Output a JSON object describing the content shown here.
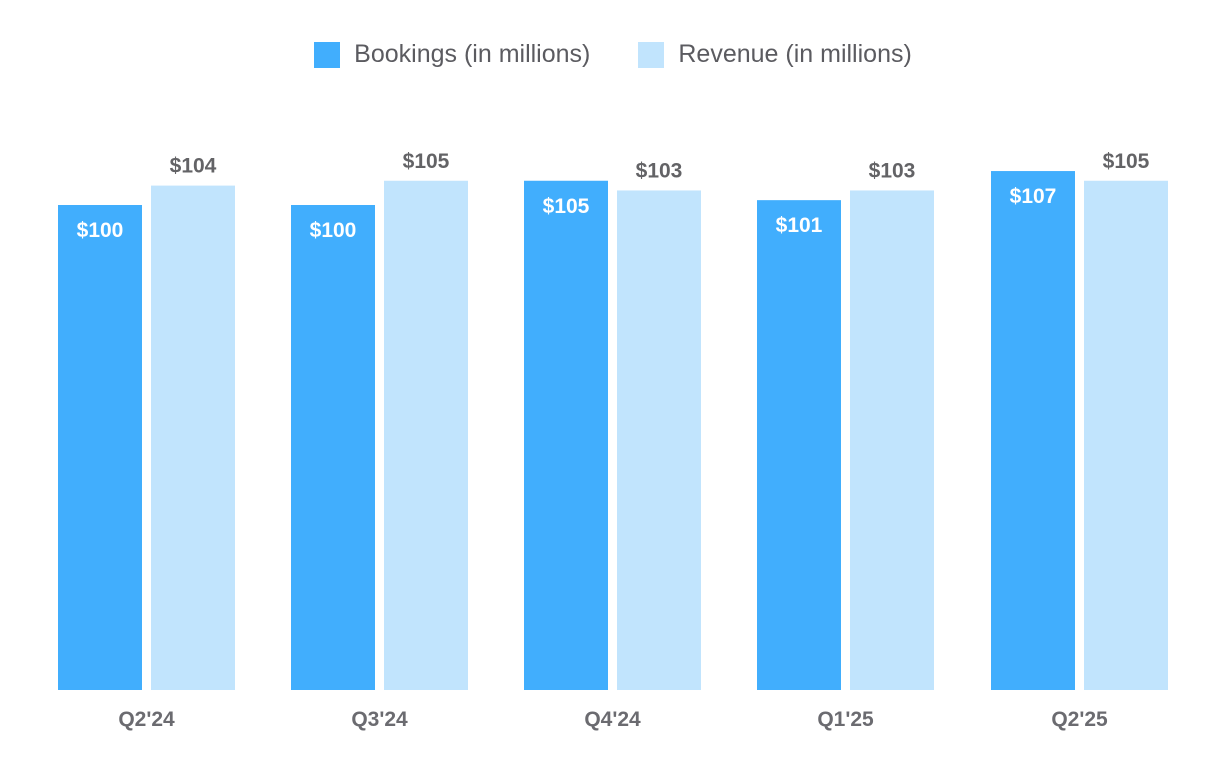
{
  "legend": {
    "bookings_label": "Bookings (in millions)",
    "revenue_label": "Revenue (in millions)"
  },
  "colors": {
    "bookings": "#41aefd",
    "revenue": "#c1e4fd",
    "value_label_inside": "#ffffff",
    "value_label_outside": "#636366",
    "tick_label": "#6b6b70"
  },
  "chart_data": {
    "type": "bar",
    "title": "",
    "xlabel": "",
    "ylabel": "",
    "categories": [
      "Q2'24",
      "Q3'24",
      "Q4'24",
      "Q1'25",
      "Q2'25"
    ],
    "series": [
      {
        "name": "Bookings (in millions)",
        "values": [
          100,
          100,
          105,
          101,
          107
        ],
        "labels": [
          "$100",
          "$100",
          "$105",
          "$101",
          "$107"
        ]
      },
      {
        "name": "Revenue (in millions)",
        "values": [
          104,
          105,
          103,
          103,
          105
        ],
        "labels": [
          "$104",
          "$105",
          "$103",
          "$103",
          "$105"
        ]
      }
    ],
    "ylim": [
      0,
      120
    ],
    "grid": false,
    "legend_position": "top-center"
  }
}
